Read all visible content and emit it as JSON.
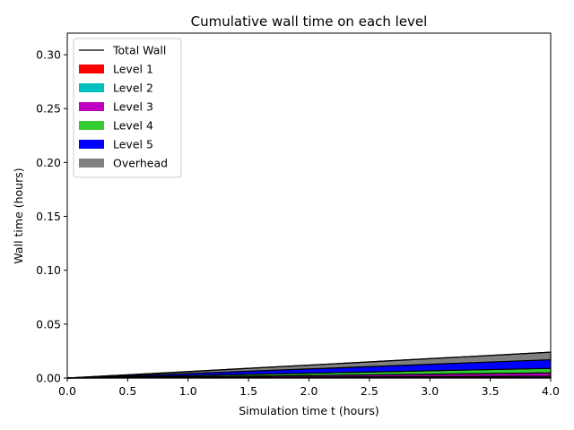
{
  "chart_data": {
    "type": "area",
    "title": "Cumulative wall time on each level",
    "xlabel": "Simulation time t (hours)",
    "ylabel": "Wall time (hours)",
    "xlim": [
      0.0,
      4.0
    ],
    "ylim": [
      0.0,
      0.32
    ],
    "xticks": [
      "0.0",
      "0.5",
      "1.0",
      "1.5",
      "2.0",
      "2.5",
      "3.0",
      "3.5",
      "4.0"
    ],
    "yticks": [
      "0.00",
      "0.05",
      "0.10",
      "0.15",
      "0.20",
      "0.25",
      "0.30"
    ],
    "grid": false,
    "legend_position": "top-left",
    "x": [
      0.0,
      4.0
    ],
    "series": [
      {
        "name": "Level 1",
        "color": "#ff0000",
        "values": [
          0.0,
          0.0008
        ]
      },
      {
        "name": "Level 2",
        "color": "#00c0c0",
        "values": [
          0.0,
          0.001
        ]
      },
      {
        "name": "Level 3",
        "color": "#c000c0",
        "values": [
          0.0,
          0.003
        ]
      },
      {
        "name": "Level 4",
        "color": "#33cc33",
        "values": [
          0.0,
          0.0042
        ]
      },
      {
        "name": "Level 5",
        "color": "#0000ff",
        "values": [
          0.0,
          0.008
        ]
      },
      {
        "name": "Overhead",
        "color": "#808080",
        "values": [
          0.0,
          0.007
        ]
      }
    ],
    "total_line": {
      "name": "Total Wall",
      "color": "#000000",
      "values": [
        0.0,
        0.024
      ]
    }
  }
}
